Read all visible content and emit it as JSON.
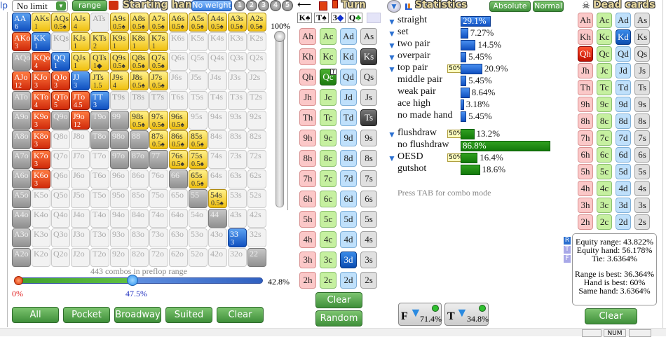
{
  "header": {
    "left_tab": "lp",
    "game_select": "No limit",
    "range_button": "range",
    "starting_hand_title": "Starting hand",
    "weight_button": "No weight",
    "weight_presets": [
      "1",
      "2",
      "3",
      "4",
      "5"
    ]
  },
  "hand_grid": [
    [
      [
        "AA",
        "b",
        "6"
      ],
      [
        "AKs",
        "y",
        "1"
      ],
      [
        "AQs",
        "y",
        "0.5♠"
      ],
      [
        "AJs",
        "y",
        "4"
      ],
      [
        "ATs",
        "l",
        ""
      ],
      [
        "A9s",
        "y",
        "0.5♠"
      ],
      [
        "A8s",
        "y",
        "0.5♠"
      ],
      [
        "A7s",
        "y",
        "0.5♠"
      ],
      [
        "A6s",
        "y",
        "0.5♠"
      ],
      [
        "A5s",
        "y",
        "0.5♠"
      ],
      [
        "A4s",
        "y",
        "0.5♠"
      ],
      [
        "A3s",
        "y",
        "0.5♠"
      ],
      [
        "A2s",
        "y",
        "0.5♠"
      ]
    ],
    [
      [
        "AKo",
        "r",
        "3"
      ],
      [
        "KK",
        "b",
        "1"
      ],
      [
        "KQs",
        "l",
        ""
      ],
      [
        "KJs",
        "y",
        "1"
      ],
      [
        "KTs",
        "y",
        "2"
      ],
      [
        "K9s",
        "y",
        "1"
      ],
      [
        "K8s",
        "y",
        "1"
      ],
      [
        "K7s",
        "y",
        "1"
      ],
      [
        "K6s",
        "w",
        ""
      ],
      [
        "K5s",
        "w",
        ""
      ],
      [
        "K4s",
        "w",
        ""
      ],
      [
        "K3s",
        "w",
        ""
      ],
      [
        "K2s",
        "w",
        ""
      ]
    ],
    [
      [
        "AQo",
        "g",
        ""
      ],
      [
        "KQo",
        "r",
        "4"
      ],
      [
        "QQ",
        "b",
        "1"
      ],
      [
        "QJs",
        "y",
        "1"
      ],
      [
        "QTs",
        "y",
        "1◆"
      ],
      [
        "Q9s",
        "y",
        "0.5♠"
      ],
      [
        "Q8s",
        "y",
        "0.5♠"
      ],
      [
        "Q7s",
        "y",
        "0.5♠"
      ],
      [
        "Q6s",
        "w",
        ""
      ],
      [
        "Q5s",
        "w",
        ""
      ],
      [
        "Q4s",
        "w",
        ""
      ],
      [
        "Q3s",
        "w",
        ""
      ],
      [
        "Q2s",
        "w",
        ""
      ]
    ],
    [
      [
        "AJo",
        "r",
        "12"
      ],
      [
        "KJo",
        "r",
        "3"
      ],
      [
        "QJo",
        "r",
        "3"
      ],
      [
        "JJ",
        "b",
        "3"
      ],
      [
        "JTs",
        "y",
        "1.5"
      ],
      [
        "J9s",
        "y",
        "4"
      ],
      [
        "J8s",
        "y",
        "0.5♠"
      ],
      [
        "J7s",
        "y",
        "0.5♠"
      ],
      [
        "J6s",
        "w",
        ""
      ],
      [
        "J5s",
        "w",
        ""
      ],
      [
        "J4s",
        "w",
        ""
      ],
      [
        "J3s",
        "w",
        ""
      ],
      [
        "J2s",
        "w",
        ""
      ]
    ],
    [
      [
        "ATo",
        "g",
        ""
      ],
      [
        "KTo",
        "r",
        "4"
      ],
      [
        "QTo",
        "r",
        "5"
      ],
      [
        "JTo",
        "r",
        "4.5"
      ],
      [
        "TT",
        "b",
        "3"
      ],
      [
        "T9s",
        "l",
        ""
      ],
      [
        "T8s",
        "l",
        ""
      ],
      [
        "T7s",
        "l",
        ""
      ],
      [
        "T6s",
        "w",
        ""
      ],
      [
        "T5s",
        "w",
        ""
      ],
      [
        "T4s",
        "w",
        ""
      ],
      [
        "T3s",
        "w",
        ""
      ],
      [
        "T2s",
        "w",
        ""
      ]
    ],
    [
      [
        "A9o",
        "g",
        ""
      ],
      [
        "K9o",
        "r",
        "3"
      ],
      [
        "Q9o",
        "g",
        ""
      ],
      [
        "J9o",
        "r",
        "12"
      ],
      [
        "T9o",
        "g",
        ""
      ],
      [
        "99",
        "g",
        ""
      ],
      [
        "98s",
        "y",
        "0.5♠"
      ],
      [
        "97s",
        "y",
        "0.5♠"
      ],
      [
        "96s",
        "y",
        "0.5♠"
      ],
      [
        "95s",
        "w",
        ""
      ],
      [
        "94s",
        "w",
        ""
      ],
      [
        "93s",
        "w",
        ""
      ],
      [
        "92s",
        "w",
        ""
      ]
    ],
    [
      [
        "A8o",
        "g",
        ""
      ],
      [
        "K8o",
        "r",
        "3"
      ],
      [
        "Q8o",
        "w",
        ""
      ],
      [
        "J8o",
        "w",
        ""
      ],
      [
        "T8o",
        "g",
        ""
      ],
      [
        "98o",
        "g",
        ""
      ],
      [
        "88",
        "g",
        ""
      ],
      [
        "87s",
        "y",
        "0.5♠"
      ],
      [
        "86s",
        "y",
        "0.5♠"
      ],
      [
        "85s",
        "y",
        "0.5♠"
      ],
      [
        "84s",
        "w",
        ""
      ],
      [
        "83s",
        "w",
        ""
      ],
      [
        "82s",
        "w",
        ""
      ]
    ],
    [
      [
        "A7o",
        "g",
        ""
      ],
      [
        "K7o",
        "r",
        "3"
      ],
      [
        "Q7o",
        "w",
        ""
      ],
      [
        "J7o",
        "w",
        ""
      ],
      [
        "T7o",
        "w",
        ""
      ],
      [
        "97o",
        "g",
        ""
      ],
      [
        "87o",
        "g",
        ""
      ],
      [
        "77",
        "g",
        ""
      ],
      [
        "76s",
        "y",
        "0.5♠"
      ],
      [
        "75s",
        "y",
        "0.5♠"
      ],
      [
        "74s",
        "w",
        ""
      ],
      [
        "73s",
        "w",
        ""
      ],
      [
        "72s",
        "w",
        ""
      ]
    ],
    [
      [
        "A6o",
        "g",
        ""
      ],
      [
        "K6o",
        "r",
        "3"
      ],
      [
        "Q6o",
        "w",
        ""
      ],
      [
        "J6o",
        "w",
        ""
      ],
      [
        "T6o",
        "w",
        ""
      ],
      [
        "96o",
        "w",
        ""
      ],
      [
        "86o",
        "w",
        ""
      ],
      [
        "76o",
        "w",
        ""
      ],
      [
        "66",
        "g",
        ""
      ],
      [
        "65s",
        "y",
        "0.5♠"
      ],
      [
        "64s",
        "w",
        ""
      ],
      [
        "63s",
        "w",
        ""
      ],
      [
        "62s",
        "w",
        ""
      ]
    ],
    [
      [
        "A5o",
        "g",
        ""
      ],
      [
        "K5o",
        "w",
        ""
      ],
      [
        "Q5o",
        "w",
        ""
      ],
      [
        "J5o",
        "w",
        ""
      ],
      [
        "T5o",
        "w",
        ""
      ],
      [
        "95o",
        "w",
        ""
      ],
      [
        "85o",
        "w",
        ""
      ],
      [
        "75o",
        "w",
        ""
      ],
      [
        "65o",
        "w",
        ""
      ],
      [
        "55",
        "g",
        ""
      ],
      [
        "54s",
        "y",
        "0.5♠"
      ],
      [
        "53s",
        "w",
        ""
      ],
      [
        "52s",
        "w",
        ""
      ]
    ],
    [
      [
        "A4o",
        "g",
        ""
      ],
      [
        "K4o",
        "w",
        ""
      ],
      [
        "Q4o",
        "w",
        ""
      ],
      [
        "J4o",
        "w",
        ""
      ],
      [
        "T4o",
        "w",
        ""
      ],
      [
        "94o",
        "w",
        ""
      ],
      [
        "84o",
        "w",
        ""
      ],
      [
        "74o",
        "w",
        ""
      ],
      [
        "64o",
        "w",
        ""
      ],
      [
        "54o",
        "w",
        ""
      ],
      [
        "44",
        "g",
        ""
      ],
      [
        "43s",
        "w",
        ""
      ],
      [
        "42s",
        "w",
        ""
      ]
    ],
    [
      [
        "A3o",
        "g",
        ""
      ],
      [
        "K3o",
        "w",
        ""
      ],
      [
        "Q3o",
        "w",
        ""
      ],
      [
        "J3o",
        "w",
        ""
      ],
      [
        "T3o",
        "w",
        ""
      ],
      [
        "93o",
        "w",
        ""
      ],
      [
        "83o",
        "w",
        ""
      ],
      [
        "73o",
        "w",
        ""
      ],
      [
        "63o",
        "w",
        ""
      ],
      [
        "53o",
        "w",
        ""
      ],
      [
        "43o",
        "w",
        ""
      ],
      [
        "33",
        "b",
        "3"
      ],
      [
        "32s",
        "w",
        ""
      ]
    ],
    [
      [
        "A2o",
        "g",
        ""
      ],
      [
        "K2o",
        "w",
        ""
      ],
      [
        "Q2o",
        "w",
        ""
      ],
      [
        "J2o",
        "w",
        ""
      ],
      [
        "T2o",
        "w",
        ""
      ],
      [
        "92o",
        "w",
        ""
      ],
      [
        "82o",
        "w",
        ""
      ],
      [
        "72o",
        "w",
        ""
      ],
      [
        "62o",
        "w",
        ""
      ],
      [
        "52o",
        "w",
        ""
      ],
      [
        "42o",
        "w",
        ""
      ],
      [
        "32o",
        "w",
        ""
      ],
      [
        "22",
        "g",
        ""
      ]
    ]
  ],
  "vertical_slider": {
    "label": "100%",
    "value_percent": 100
  },
  "range_slider": {
    "combos_text": "443 combos in preflop range",
    "low": "0%",
    "high": "47.5%",
    "total": "42.8%",
    "low_value": 0,
    "high_value": 47.5
  },
  "preset_buttons": [
    "All",
    "Pocket",
    "Broadway",
    "Suited",
    "Clear"
  ],
  "turn": {
    "title": "Turn",
    "board": [
      {
        "rank": "K",
        "suit": "♠",
        "color": "#000"
      },
      {
        "rank": "T",
        "suit": "♠",
        "color": "#000"
      },
      {
        "rank": "3",
        "suit": "◆",
        "color": "#1030d0"
      },
      {
        "rank": "Q",
        "suit": "♣",
        "color": "#1a9a1a"
      }
    ],
    "ranks": [
      "A",
      "K",
      "Q",
      "J",
      "T",
      "9",
      "8",
      "7",
      "6",
      "5",
      "4",
      "3",
      "2"
    ],
    "suits": [
      "h",
      "c",
      "d",
      "s"
    ],
    "selected": {
      "Ks": "sel-dark",
      "Ts": "sel-dark",
      "Qc": "sel-green",
      "3d": "sel-blue"
    },
    "badge_card": "Qc",
    "badge": "T",
    "clear": "Clear",
    "random": "Random"
  },
  "statistics": {
    "title": "Statistics",
    "absolute": "Absolute",
    "normal": "Normal",
    "made": [
      {
        "label": "straight",
        "value": 29.1,
        "text": "29.1%",
        "filter": true,
        "inside": true
      },
      {
        "label": "set",
        "value": 7.27,
        "text": "7.27%",
        "filter": true
      },
      {
        "label": "two pair",
        "value": 14.5,
        "text": "14.5%",
        "filter": true
      },
      {
        "label": "overpair",
        "value": 5.45,
        "text": "5.45%",
        "filter": true
      },
      {
        "label": "top pair",
        "value": 20.9,
        "text": "20.9%",
        "filter": true,
        "tag": "50%"
      },
      {
        "label": "middle pair",
        "value": 5.45,
        "text": "5.45%"
      },
      {
        "label": "weak pair",
        "value": 8.64,
        "text": "8.64%"
      },
      {
        "label": "ace high",
        "value": 3.18,
        "text": "3.18%"
      },
      {
        "label": "no made hand",
        "value": 5.45,
        "text": "5.45%"
      }
    ],
    "draws": [
      {
        "label": "flushdraw",
        "value": 13.2,
        "text": "13.2%",
        "filter": true,
        "tag": "50%"
      },
      {
        "label": "no flushdraw",
        "value": 86.8,
        "text": "86.8%",
        "inside": true
      },
      {
        "label": "OESD",
        "value": 16.4,
        "text": "16.4%",
        "filter": true,
        "tag": "50%"
      },
      {
        "label": "gutshot",
        "value": 18.6,
        "text": "18.6%"
      }
    ],
    "hint": "Press TAB for combo mode",
    "flop_filter": {
      "letter": "F",
      "value": "71.4%"
    },
    "turn_filter": {
      "letter": "T",
      "value": "34.8%"
    }
  },
  "dead_cards": {
    "title": "Dead cards",
    "selected": {
      "Qh": "sel-red",
      "Kd": "sel-blue"
    },
    "clear": "Clear"
  },
  "equity": {
    "street_icons": [
      "R",
      "T",
      "F"
    ],
    "lines1": [
      "Equity range: 43.822%",
      "Equity hand: 56.178%",
      "Tie: 3.6364%"
    ],
    "lines2": [
      "Range is best: 36.364%",
      "Hand is best: 60%",
      "Same hand: 3.6364%"
    ]
  },
  "status_bar": {
    "num": "NUM"
  }
}
